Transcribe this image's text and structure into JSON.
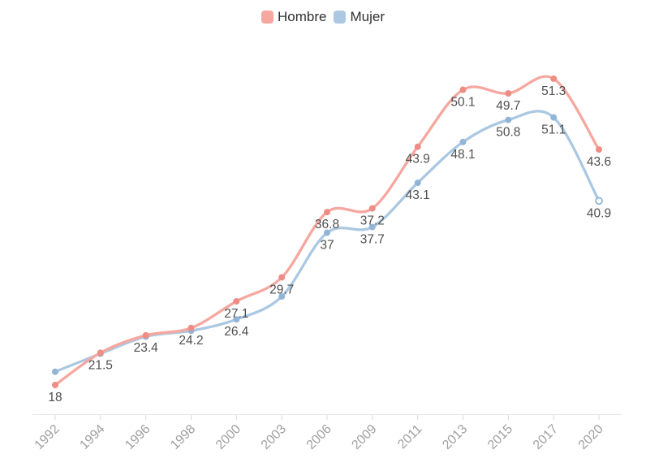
{
  "colors": {
    "background": "#ffffff",
    "axis_line": "#e5e5e5",
    "tick": "#d9d9d9",
    "axis_label_text": "#a0a0a0",
    "data_label_text": "#4f4f4f",
    "legend_text": "#2f2f2f",
    "hombre_line": "#f5a7a0",
    "hombre_point": "#ee8d85",
    "mujer_line": "#abc8e2",
    "mujer_point": "#92b5d7"
  },
  "chart_data": {
    "type": "line",
    "smooth": true,
    "grid": false,
    "legend_position": "top-center",
    "x_axis_labels_rotated_degrees": 45,
    "y_axis_visible": false,
    "x_categories": [
      "1992",
      "1994",
      "1996",
      "1998",
      "2000",
      "2003",
      "2006",
      "2009",
      "2011",
      "2013",
      "2015",
      "2017",
      "2020"
    ],
    "series": [
      {
        "name": "Hombre",
        "line_color": "#f5a7a0",
        "point_color": "#ee8d85",
        "axis_range": [
          15,
          55
        ],
        "values": [
          18,
          21.5,
          23.4,
          24.2,
          27.1,
          29.7,
          36.8,
          37.2,
          43.9,
          50.1,
          49.7,
          51.3,
          43.6
        ],
        "labels": [
          "18",
          "21.5",
          "23.4",
          "24.2",
          "27.1",
          "29.7",
          "36.8",
          "37.2",
          "43.9",
          "50.1",
          "49.7",
          "51.3",
          "43.6"
        ],
        "last_point_style": "solid"
      },
      {
        "name": "Mujer",
        "line_color": "#abc8e2",
        "point_color": "#92b5d7",
        "axis_range": [
          15,
          60
        ],
        "values": [
          20,
          22.2,
          24.3,
          25,
          26.4,
          29.2,
          37,
          37.7,
          43.1,
          48.1,
          50.8,
          51.1,
          40.9
        ],
        "labels": [
          null,
          null,
          null,
          null,
          "26.4",
          null,
          "37",
          "37.7",
          "43.1",
          "48.1",
          "50.8",
          "51.1",
          "40.9"
        ],
        "estimated_unlabeled_indices": [
          0,
          1,
          2,
          3,
          5
        ],
        "last_point_style": "hollow"
      }
    ]
  }
}
